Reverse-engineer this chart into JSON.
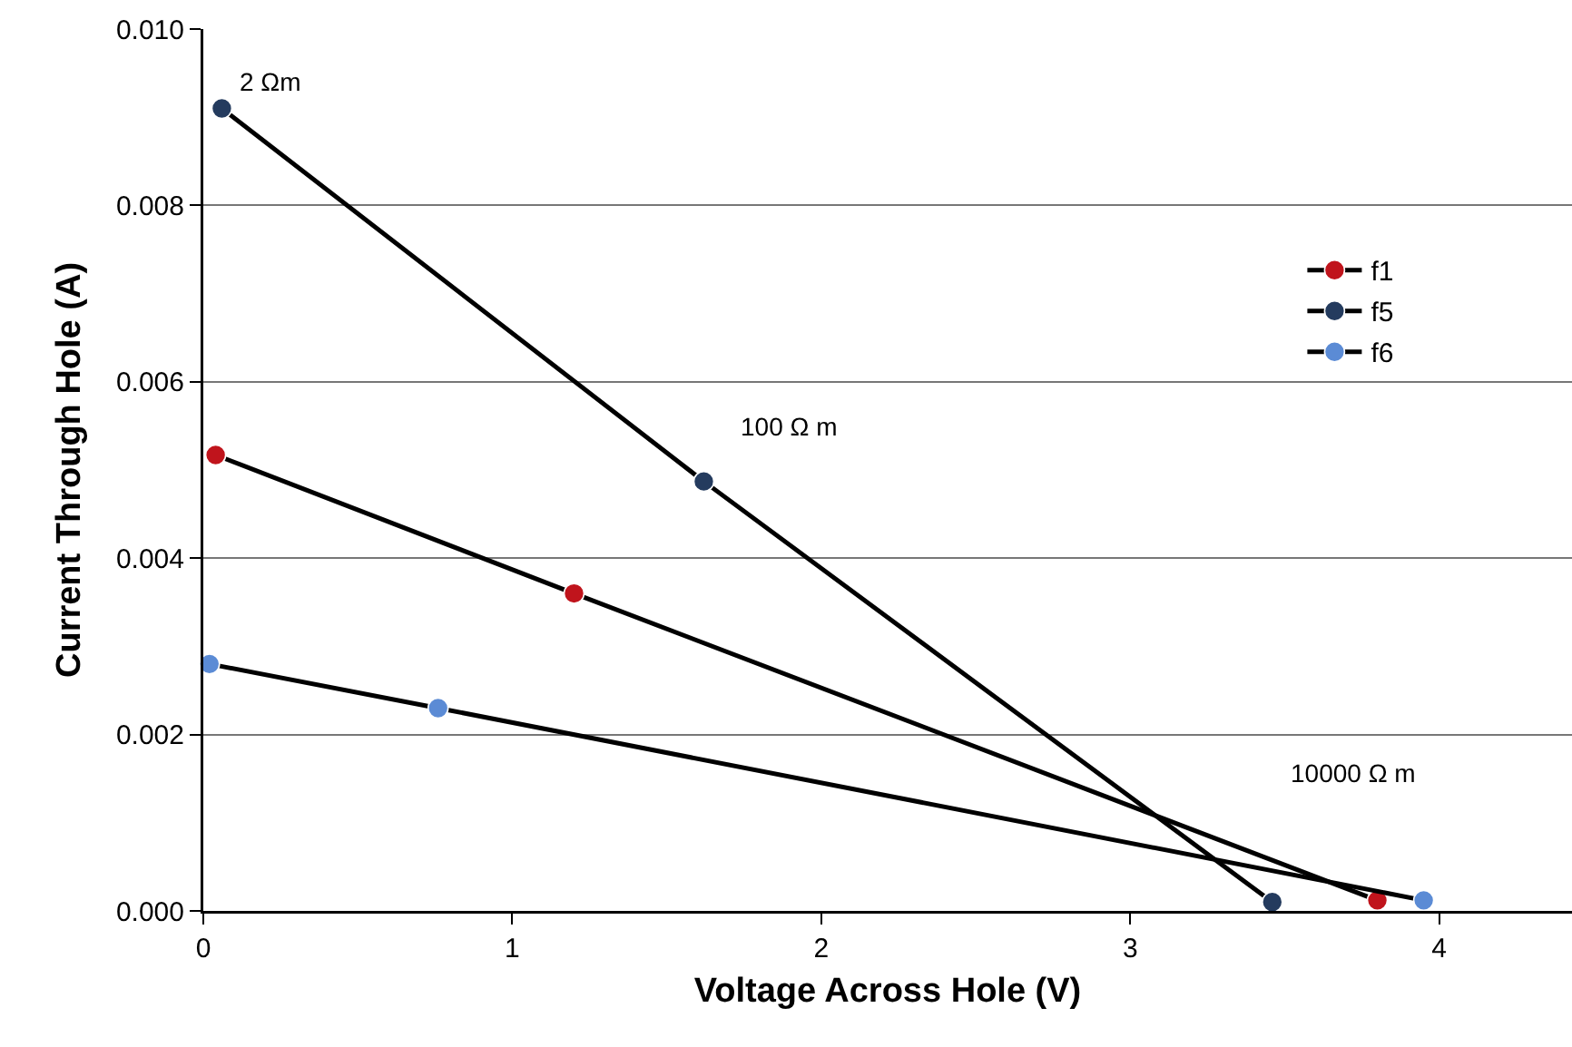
{
  "chart_data": {
    "type": "line",
    "xlabel": "Voltage Across Hole (V)",
    "ylabel": "Current Through Hole (A)",
    "xlim": [
      0,
      4.43
    ],
    "xticks": [
      0,
      1,
      2,
      3,
      4
    ],
    "ylim": [
      0,
      0.01
    ],
    "yticks": [
      {
        "value": 0,
        "label": "0.000"
      },
      {
        "value": 0.002,
        "label": "0.002"
      },
      {
        "value": 0.004,
        "label": "0.004"
      },
      {
        "value": 0.006,
        "label": "0.006"
      },
      {
        "value": 0.008,
        "label": "0.008"
      },
      {
        "value": 0.01,
        "label": "0.010"
      }
    ],
    "grid": "y",
    "legend": "right",
    "marker": "circle",
    "line_style": "solid",
    "series": [
      {
        "name": "f1",
        "color": "#c0141c",
        "x": [
          0.04,
          1.2,
          3.8
        ],
        "values": [
          0.00517,
          0.0036,
          0.00012
        ]
      },
      {
        "name": "f5",
        "color": "#243b5e",
        "x": [
          0.06,
          1.62,
          3.46
        ],
        "values": [
          0.0091,
          0.00487,
          0.0001
        ]
      },
      {
        "name": "f6",
        "color": "#5b8bd5",
        "x": [
          0.02,
          0.76,
          3.95
        ],
        "values": [
          0.0028,
          0.0023,
          0.00012
        ]
      }
    ],
    "annotations": [
      {
        "text": "2 Ωm",
        "x": 0.06,
        "y": 0.0091
      },
      {
        "text": "100 Ω m",
        "x": 1.62,
        "y": 0.00487
      },
      "10000 Ω m"
    ]
  }
}
